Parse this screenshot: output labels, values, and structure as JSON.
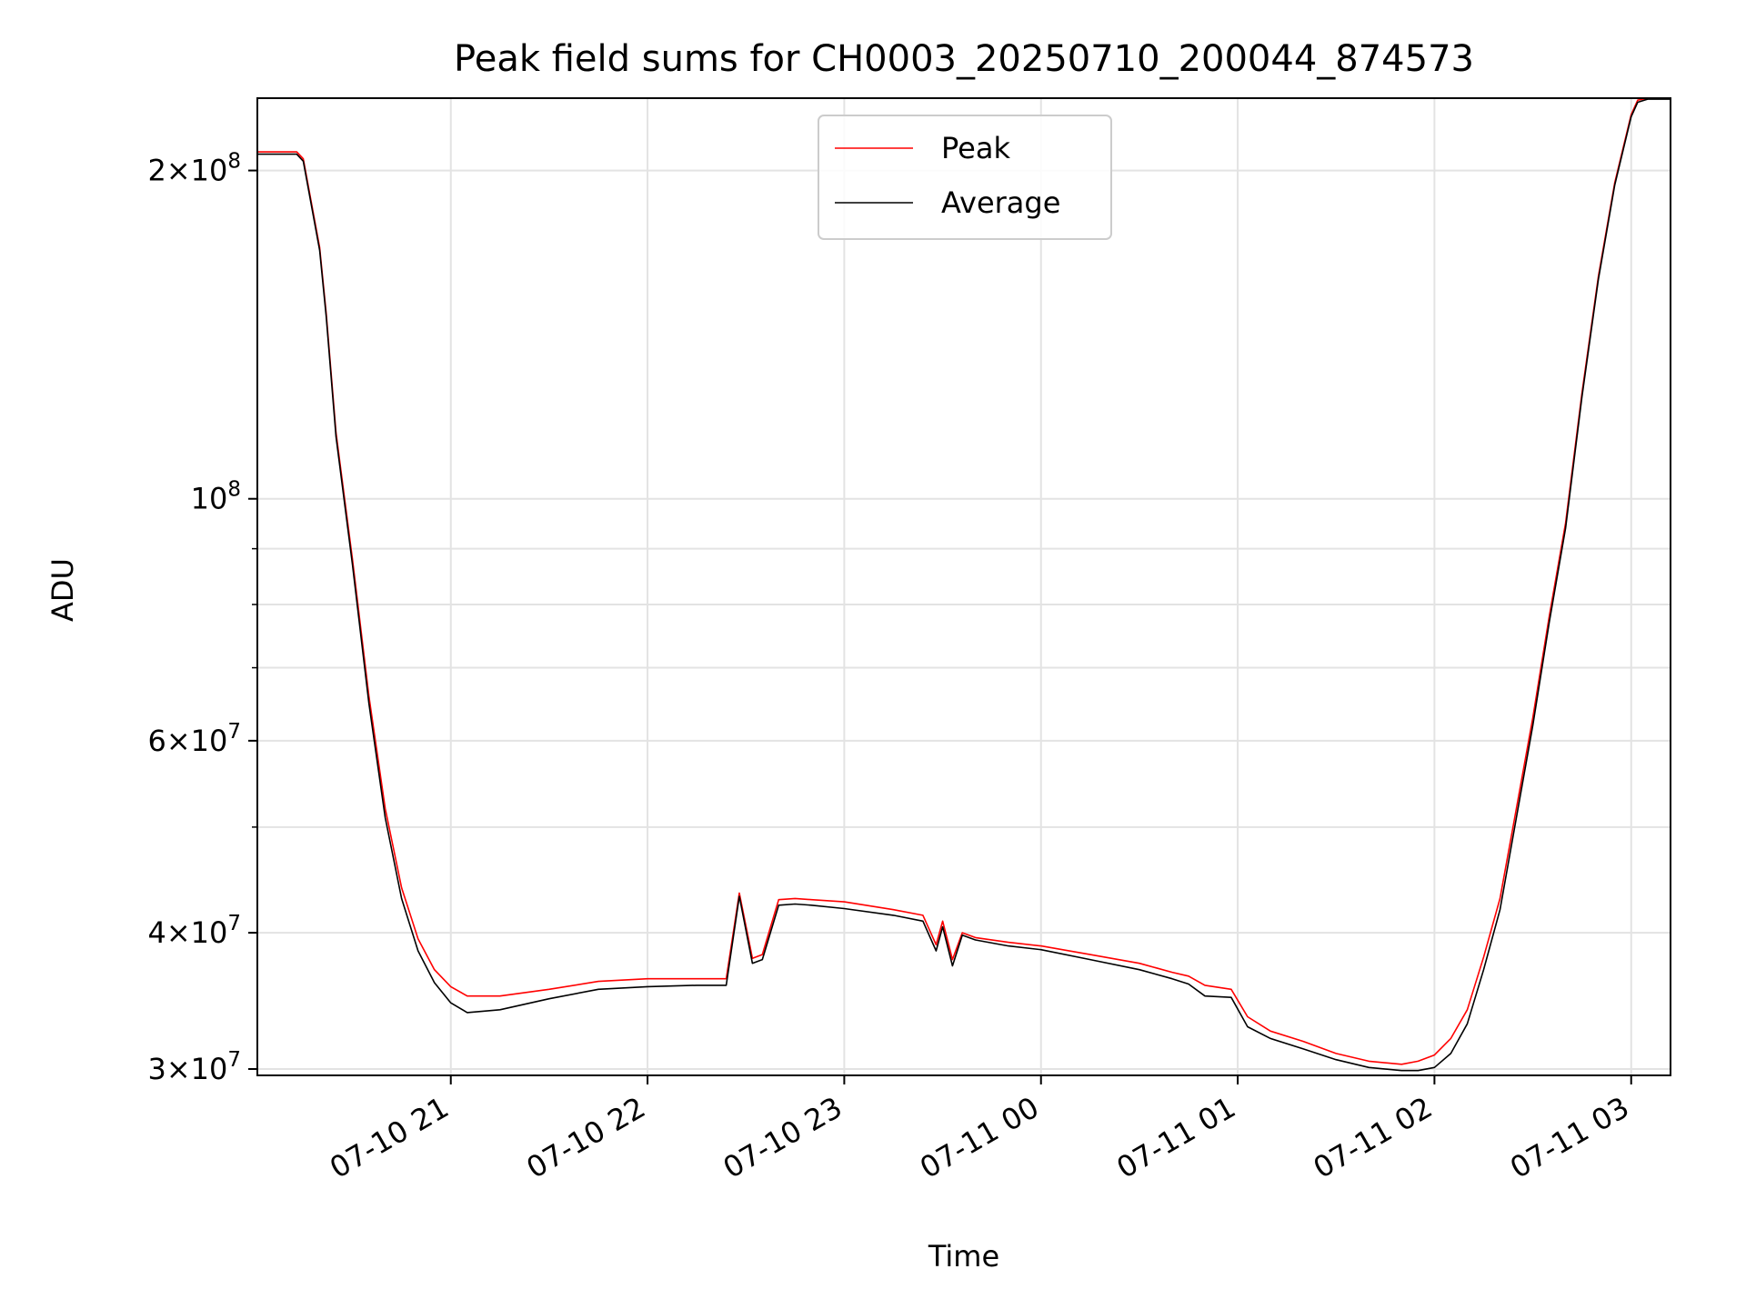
{
  "chart_data": {
    "type": "line",
    "title": "Peak field sums for CH0003_20250710_200044_874573",
    "xlabel": "Time",
    "ylabel": "ADU",
    "yscale": "log",
    "ylim": [
      29600000,
      233000000
    ],
    "xlim": [
      "2025-07-10 20:01",
      "2025-07-11 03:12"
    ],
    "grid": true,
    "legend": "upper center",
    "x_ticks": [
      {
        "value": "2025-07-10 21:00",
        "label": "07-10 21"
      },
      {
        "value": "2025-07-10 22:00",
        "label": "07-10 22"
      },
      {
        "value": "2025-07-10 23:00",
        "label": "07-10 23"
      },
      {
        "value": "2025-07-11 00:00",
        "label": "07-11 00"
      },
      {
        "value": "2025-07-11 01:00",
        "label": "07-11 01"
      },
      {
        "value": "2025-07-11 02:00",
        "label": "07-11 02"
      },
      {
        "value": "2025-07-11 03:00",
        "label": "07-11 03"
      }
    ],
    "y_ticks": [
      {
        "value": 30000000,
        "mant": "3",
        "exp": "7"
      },
      {
        "value": 40000000,
        "mant": "4",
        "exp": "7"
      },
      {
        "value": 60000000,
        "mant": "6",
        "exp": "7"
      },
      {
        "value": 100000000,
        "mant": "",
        "exp": "8"
      },
      {
        "value": 200000000,
        "mant": "2",
        "exp": "8"
      }
    ],
    "y_minor_ticks": [
      50000000,
      70000000,
      80000000,
      90000000
    ],
    "series": [
      {
        "name": "Peak",
        "color": "#ff0000",
        "x": [
          "2025-07-10 20:01",
          "2025-07-10 20:13",
          "2025-07-10 20:15",
          "2025-07-10 20:20",
          "2025-07-10 20:22",
          "2025-07-10 20:25",
          "2025-07-10 20:30",
          "2025-07-10 20:35",
          "2025-07-10 20:40",
          "2025-07-10 20:45",
          "2025-07-10 20:50",
          "2025-07-10 20:55",
          "2025-07-10 21:00",
          "2025-07-10 21:05",
          "2025-07-10 21:15",
          "2025-07-10 21:30",
          "2025-07-10 21:45",
          "2025-07-10 22:00",
          "2025-07-10 22:15",
          "2025-07-10 22:24",
          "2025-07-10 22:28",
          "2025-07-10 22:32",
          "2025-07-10 22:35",
          "2025-07-10 22:40",
          "2025-07-10 22:45",
          "2025-07-10 22:50",
          "2025-07-10 23:00",
          "2025-07-10 23:15",
          "2025-07-10 23:24",
          "2025-07-10 23:28",
          "2025-07-10 23:30",
          "2025-07-10 23:33",
          "2025-07-10 23:36",
          "2025-07-10 23:40",
          "2025-07-10 23:50",
          "2025-07-11 00:00",
          "2025-07-11 00:15",
          "2025-07-11 00:30",
          "2025-07-11 00:40",
          "2025-07-11 00:45",
          "2025-07-11 00:50",
          "2025-07-11 00:58",
          "2025-07-11 01:03",
          "2025-07-11 01:10",
          "2025-07-11 01:20",
          "2025-07-11 01:30",
          "2025-07-11 01:40",
          "2025-07-11 01:50",
          "2025-07-11 01:55",
          "2025-07-11 02:00",
          "2025-07-11 02:05",
          "2025-07-11 02:10",
          "2025-07-11 02:15",
          "2025-07-11 02:20",
          "2025-07-11 02:25",
          "2025-07-11 02:30",
          "2025-07-11 02:35",
          "2025-07-11 02:40",
          "2025-07-11 02:45",
          "2025-07-11 02:50",
          "2025-07-11 02:55",
          "2025-07-11 03:00",
          "2025-07-11 03:02",
          "2025-07-11 03:05",
          "2025-07-11 03:12"
        ],
        "values": [
          208000000,
          208000000,
          205000000,
          170000000,
          148000000,
          115000000,
          88000000,
          66000000,
          52000000,
          44000000,
          39500000,
          37000000,
          35700000,
          35000000,
          35000000,
          35500000,
          36100000,
          36300000,
          36300000,
          36300000,
          43500000,
          37900000,
          38200000,
          42900000,
          43000000,
          42900000,
          42700000,
          42000000,
          41500000,
          39000000,
          41000000,
          37800000,
          40000000,
          39600000,
          39200000,
          38900000,
          38200000,
          37500000,
          36800000,
          36500000,
          35800000,
          35500000,
          33500000,
          32500000,
          31800000,
          31000000,
          30500000,
          30300000,
          30500000,
          30900000,
          32000000,
          34000000,
          38000000,
          43000000,
          52000000,
          63000000,
          78000000,
          95000000,
          125000000,
          160000000,
          195000000,
          225000000,
          232000000,
          233000000,
          233000000
        ]
      },
      {
        "name": "Average",
        "color": "#000000",
        "x": [
          "2025-07-10 20:01",
          "2025-07-10 20:13",
          "2025-07-10 20:15",
          "2025-07-10 20:20",
          "2025-07-10 20:22",
          "2025-07-10 20:25",
          "2025-07-10 20:30",
          "2025-07-10 20:35",
          "2025-07-10 20:40",
          "2025-07-10 20:45",
          "2025-07-10 20:50",
          "2025-07-10 20:55",
          "2025-07-10 21:00",
          "2025-07-10 21:05",
          "2025-07-10 21:15",
          "2025-07-10 21:30",
          "2025-07-10 21:45",
          "2025-07-10 22:00",
          "2025-07-10 22:15",
          "2025-07-10 22:24",
          "2025-07-10 22:28",
          "2025-07-10 22:32",
          "2025-07-10 22:35",
          "2025-07-10 22:40",
          "2025-07-10 22:45",
          "2025-07-10 22:50",
          "2025-07-10 23:00",
          "2025-07-10 23:15",
          "2025-07-10 23:24",
          "2025-07-10 23:28",
          "2025-07-10 23:30",
          "2025-07-10 23:33",
          "2025-07-10 23:36",
          "2025-07-10 23:40",
          "2025-07-10 23:50",
          "2025-07-11 00:00",
          "2025-07-11 00:15",
          "2025-07-11 00:30",
          "2025-07-11 00:40",
          "2025-07-11 00:45",
          "2025-07-11 00:50",
          "2025-07-11 00:58",
          "2025-07-11 01:03",
          "2025-07-11 01:10",
          "2025-07-11 01:20",
          "2025-07-11 01:30",
          "2025-07-11 01:40",
          "2025-07-11 01:50",
          "2025-07-11 01:55",
          "2025-07-11 02:00",
          "2025-07-11 02:05",
          "2025-07-11 02:10",
          "2025-07-11 02:15",
          "2025-07-11 02:20",
          "2025-07-11 02:25",
          "2025-07-11 02:30",
          "2025-07-11 02:35",
          "2025-07-11 02:40",
          "2025-07-11 02:45",
          "2025-07-11 02:50",
          "2025-07-11 02:55",
          "2025-07-11 03:00",
          "2025-07-11 03:02",
          "2025-07-11 03:05",
          "2025-07-11 03:12"
        ],
        "values": [
          207000000,
          207000000,
          204000000,
          169000000,
          147000000,
          114000000,
          87000000,
          65000000,
          51000000,
          43000000,
          38500000,
          36000000,
          34500000,
          33800000,
          34000000,
          34800000,
          35500000,
          35700000,
          35800000,
          35800000,
          43200000,
          37500000,
          37800000,
          42400000,
          42500000,
          42400000,
          42100000,
          41500000,
          41000000,
          38500000,
          40500000,
          37300000,
          39800000,
          39400000,
          38900000,
          38600000,
          37800000,
          37000000,
          36300000,
          35900000,
          35000000,
          34900000,
          32800000,
          32000000,
          31300000,
          30600000,
          30100000,
          29900000,
          29900000,
          30100000,
          31000000,
          33000000,
          37000000,
          42000000,
          51000000,
          62000000,
          77000000,
          94000000,
          124000000,
          159000000,
          194000000,
          224000000,
          231000000,
          232500000,
          232500000
        ]
      }
    ]
  }
}
